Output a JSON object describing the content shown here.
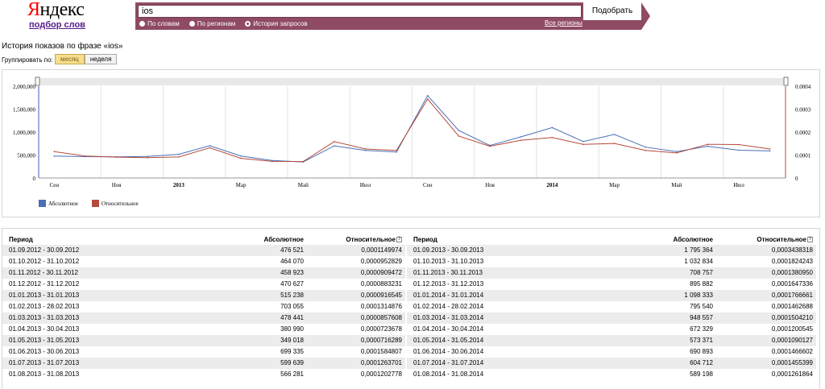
{
  "header": {
    "logo_ya": "Я",
    "logo_rest": "ндекс",
    "logo_sub": "подбор слов",
    "search_value": "ios",
    "search_button": "Подобрать",
    "radios": [
      {
        "label": "По словам",
        "selected": false
      },
      {
        "label": "По регионам",
        "selected": false
      },
      {
        "label": "История запросов",
        "selected": true
      }
    ],
    "all_regions": "Все регионы",
    "accent_color": "#8f4a64"
  },
  "page": {
    "title": "История показов по фразе «ios»",
    "group_label": "Группировать по:",
    "group_month": "месяц",
    "group_week": "неделя"
  },
  "chart_data": {
    "type": "line",
    "x": [
      "01.09.2012",
      "01.10.2012",
      "01.11.2012",
      "01.12.2012",
      "01.01.2013",
      "01.02.2013",
      "01.03.2013",
      "01.04.2013",
      "01.05.2013",
      "01.06.2013",
      "01.07.2013",
      "01.08.2013",
      "01.09.2013",
      "01.10.2013",
      "01.11.2013",
      "01.12.2013",
      "01.01.2014",
      "01.02.2014",
      "01.03.2014",
      "01.04.2014",
      "01.05.2014",
      "01.06.2014",
      "01.07.2014",
      "01.08.2014"
    ],
    "x_tick_labels": [
      "Сен",
      "Ноя",
      "2013",
      "Мар",
      "Май",
      "Июл",
      "Сен",
      "Ноя",
      "2014",
      "Мар",
      "Май",
      "Июл"
    ],
    "y_left_ticks": [
      "0",
      "500,000",
      "1,000,000",
      "1,500,000",
      "2,000,000"
    ],
    "y_right_ticks": [
      "0",
      "0.0001",
      "0.0002",
      "0.0003",
      "0.0004"
    ],
    "ylim_left": [
      0,
      2000000
    ],
    "ylim_right": [
      0,
      0.0004
    ],
    "series": [
      {
        "name": "Абсолютное",
        "color": "#4a6fb5",
        "axis": "left",
        "values": [
          476521,
          464070,
          458923,
          470627,
          515238,
          703055,
          478441,
          380990,
          349018,
          699335,
          599639,
          566281,
          1795364,
          1032834,
          708757,
          895882,
          1098333,
          795540,
          948557,
          672329,
          573371,
          690893,
          604712,
          589198
        ]
      },
      {
        "name": "Относительное",
        "color": "#b54a3e",
        "axis": "right",
        "values": [
          0.0001149974,
          9.52829e-05,
          9.09472e-05,
          8.83231e-05,
          9.16545e-05,
          0.0001314876,
          8.57608e-05,
          7.23678e-05,
          7.16289e-05,
          0.0001584807,
          0.0001263701,
          0.0001202778,
          0.0003438318,
          0.0001824243,
          0.000138095,
          0.0001647336,
          0.0001766661,
          0.0001462688,
          0.000150421,
          0.0001200545,
          0.0001090127,
          0.0001466602,
          0.0001455399,
          0.0001261864
        ]
      }
    ]
  },
  "table": {
    "headers": {
      "period": "Период",
      "abs": "Абсолютное",
      "rel": "Относительное"
    },
    "left": [
      {
        "period": "01.09.2012 - 30.09.2012",
        "abs": "476 521",
        "rel": "0,0001149974"
      },
      {
        "period": "01.10.2012 - 31.10.2012",
        "abs": "464 070",
        "rel": "0,0000952829"
      },
      {
        "period": "01.11.2012 - 30.11.2012",
        "abs": "458 923",
        "rel": "0,0000909472"
      },
      {
        "period": "01.12.2012 - 31.12.2012",
        "abs": "470 627",
        "rel": "0,0000883231"
      },
      {
        "period": "01.01.2013 - 31.01.2013",
        "abs": "515 238",
        "rel": "0,0000916545"
      },
      {
        "period": "01.02.2013 - 28.02.2013",
        "abs": "703 055",
        "rel": "0,0001314876"
      },
      {
        "period": "01.03.2013 - 31.03.2013",
        "abs": "478 441",
        "rel": "0,0000857608"
      },
      {
        "period": "01.04.2013 - 30.04.2013",
        "abs": "380 990",
        "rel": "0,0000723678"
      },
      {
        "period": "01.05.2013 - 31.05.2013",
        "abs": "349 018",
        "rel": "0,0000716289"
      },
      {
        "period": "01.06.2013 - 30.06.2013",
        "abs": "699 335",
        "rel": "0,0001584807"
      },
      {
        "period": "01.07.2013 - 31.07.2013",
        "abs": "599 639",
        "rel": "0,0001263701"
      },
      {
        "period": "01.08.2013 - 31.08.2013",
        "abs": "566 281",
        "rel": "0,0001202778"
      }
    ],
    "right": [
      {
        "period": "01.09.2013 - 30.09.2013",
        "abs": "1 795 364",
        "rel": "0,0003438318"
      },
      {
        "period": "01.10.2013 - 31.10.2013",
        "abs": "1 032 834",
        "rel": "0,0001824243"
      },
      {
        "period": "01.11.2013 - 30.11.2013",
        "abs": "708 757",
        "rel": "0,0001380950"
      },
      {
        "period": "01.12.2013 - 31.12.2013",
        "abs": "895 882",
        "rel": "0,0001647336"
      },
      {
        "period": "01.01.2014 - 31.01.2014",
        "abs": "1 098 333",
        "rel": "0,0001766661"
      },
      {
        "period": "01.02.2014 - 28.02.2014",
        "abs": "795 540",
        "rel": "0,0001462688"
      },
      {
        "period": "01.03.2014 - 31.03.2014",
        "abs": "948 557",
        "rel": "0,0001504210"
      },
      {
        "period": "01.04.2014 - 30.04.2014",
        "abs": "672 329",
        "rel": "0,0001200545"
      },
      {
        "period": "01.05.2014 - 31.05.2014",
        "abs": "573 371",
        "rel": "0,0001090127"
      },
      {
        "period": "01.06.2014 - 30.06.2014",
        "abs": "690 893",
        "rel": "0,0001466602"
      },
      {
        "period": "01.07.2014 - 31.07.2014",
        "abs": "604 712",
        "rel": "0,0001455399"
      },
      {
        "period": "01.08.2014 - 31.08.2014",
        "abs": "589 198",
        "rel": "0,0001261864"
      }
    ]
  }
}
